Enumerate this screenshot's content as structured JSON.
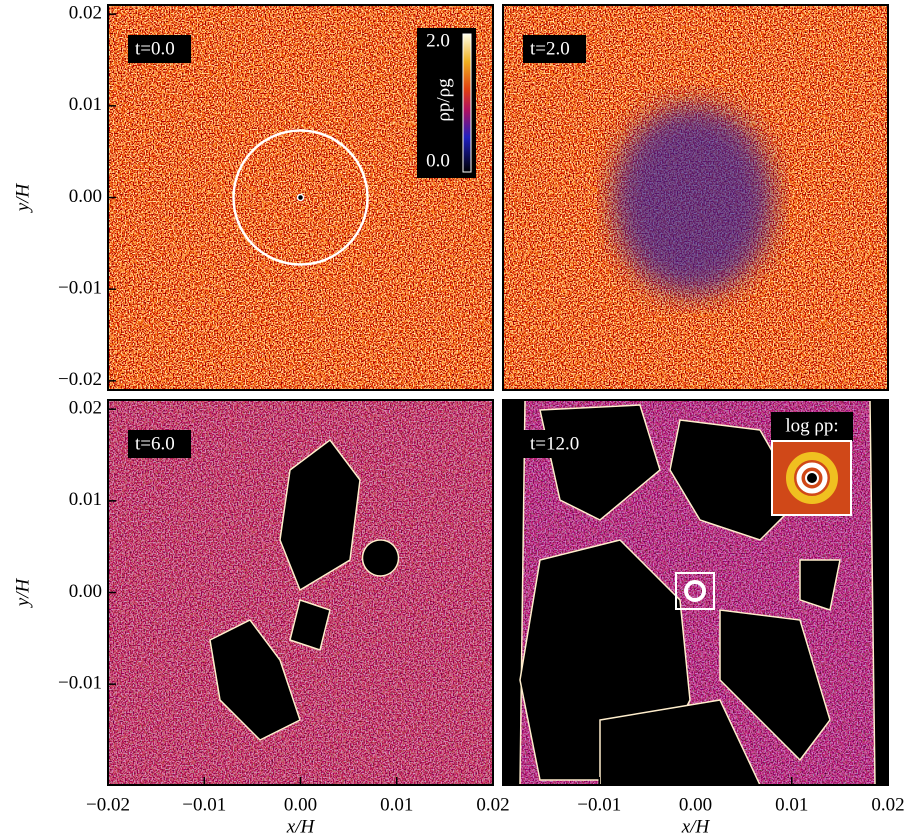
{
  "chart_data": [
    {
      "type": "image",
      "title": "t=0.0",
      "xlim": [
        -0.02,
        0.02
      ],
      "ylim": [
        -0.021,
        0.021
      ],
      "ylabel": "y/H",
      "yticks": [
        {
          "value": -0.02,
          "label": "−0.02"
        },
        {
          "value": -0.01,
          "label": "−0.01"
        },
        {
          "value": 0,
          "label": "0.00"
        },
        0.01,
        0.02
      ],
      "colorbar": {
        "label": "ρp/ρg",
        "lim": [
          0,
          2
        ],
        "ticks": [
          {
            "value": 2,
            "label": "2.0"
          },
          {
            "value": 0,
            "label": "0.0"
          }
        ]
      }
    },
    {
      "type": "image",
      "title": "t=2.0",
      "xlim": [
        -0.02,
        0.02
      ],
      "ylim": [
        -0.021,
        0.021
      ]
    },
    {
      "type": "image",
      "title": "t=6.0",
      "xlim": [
        -0.02,
        0.02
      ],
      "ylim": [
        -0.021,
        0.021
      ],
      "xlabel": "x/H",
      "ylabel": "y/H",
      "xticks": [
        {
          "value": -0.02,
          "label": "−0.02"
        },
        {
          "value": -0.01,
          "label": "−0.01"
        },
        {
          "value": 0,
          "label": "0.00"
        },
        0.01,
        0.02
      ],
      "yticks": [
        {
          "value": -0.01,
          "label": "−0.01"
        },
        {
          "value": 0,
          "label": "0.00"
        },
        0.01,
        0.02
      ]
    },
    {
      "type": "image",
      "title": "t=12.0",
      "xlim": [
        -0.02,
        0.02
      ],
      "ylim": [
        -0.021,
        0.021
      ],
      "xlabel": "x/H",
      "xticks": [
        {
          "value": -0.01,
          "label": "−0.01"
        },
        {
          "value": 0,
          "label": "0.00"
        },
        0.01,
        0.02
      ],
      "inset_label": "log ρp:"
    }
  ]
}
